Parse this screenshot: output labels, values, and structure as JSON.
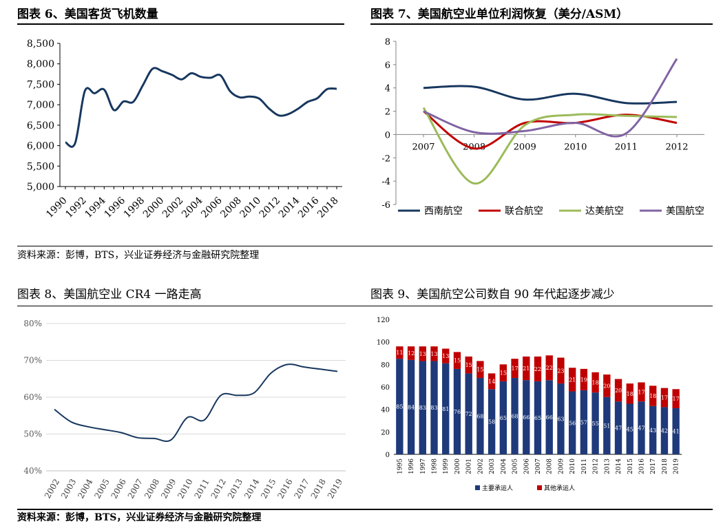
{
  "panels": {
    "p6_title": "图表 6、美国客货飞机数量",
    "p7_title": "图表 7、美国航空业单位利润恢复（美分/ASM）",
    "p8_title": "图表 8、美国航空业 CR4 一路走高",
    "p9_title": "图表 9、美国航空公司数自 90 年代起逐步减少",
    "source_top": "资料来源：彭博，BTS，兴业证券经济与金融研究院整理",
    "source_bottom": "资料来源：彭博，BTS，兴业证券经济与金融研究院整理"
  },
  "colors": {
    "navy": "#17375e",
    "red": "#c00000",
    "green": "#9bbb59",
    "purple": "#8064a2",
    "bar_navy": "#1f3a7a",
    "bar_red": "#c00000"
  },
  "chart_data": [
    {
      "id": "fig6",
      "type": "line",
      "x": [
        1990,
        1991,
        1992,
        1993,
        1994,
        1995,
        1996,
        1997,
        1998,
        1999,
        2000,
        2001,
        2002,
        2003,
        2004,
        2005,
        2006,
        2007,
        2008,
        2009,
        2010,
        2011,
        2012,
        2013,
        2014,
        2015,
        2016,
        2017,
        2018
      ],
      "xticks": [
        "1990",
        "1992",
        "1994",
        "1996",
        "1998",
        "2000",
        "2002",
        "2004",
        "2006",
        "2008",
        "2010",
        "2012",
        "2014",
        "2016",
        "2018"
      ],
      "series": [
        {
          "values": [
            6080,
            6060,
            7330,
            7280,
            7370,
            6870,
            7080,
            7070,
            7480,
            7880,
            7820,
            7730,
            7620,
            7770,
            7680,
            7660,
            7720,
            7330,
            7180,
            7200,
            7150,
            6910,
            6740,
            6770,
            6900,
            7070,
            7160,
            7380,
            7390
          ]
        }
      ],
      "ylim": [
        5000,
        8500
      ],
      "yticks": [
        "5,000",
        "5,500",
        "6,000",
        "6,500",
        "7,000",
        "7,500",
        "8,000",
        "8,500"
      ],
      "ytick_values": [
        5000,
        5500,
        6000,
        6500,
        7000,
        7500,
        8000,
        8500
      ]
    },
    {
      "id": "fig7",
      "type": "line",
      "x": [
        "2007",
        "2008",
        "2009",
        "2010",
        "2011",
        "2012"
      ],
      "ylim": [
        -6,
        8
      ],
      "yticks": [
        "-6",
        "-4",
        "-2",
        "0",
        "2",
        "4",
        "6",
        "8"
      ],
      "ytick_values": [
        -6,
        -4,
        -2,
        0,
        2,
        4,
        6,
        8
      ],
      "series": [
        {
          "name": "西南航空",
          "color": "#17375e",
          "values": [
            4.0,
            4.1,
            3.0,
            3.5,
            2.7,
            2.8
          ]
        },
        {
          "name": "联合航空",
          "color": "#c00000",
          "values": [
            2.0,
            -1.2,
            1.0,
            1.0,
            1.7,
            1.0
          ]
        },
        {
          "name": "达美航空",
          "color": "#9bbb59",
          "values": [
            2.3,
            -4.2,
            0.8,
            1.7,
            1.6,
            1.5
          ]
        },
        {
          "name": "美国航空",
          "color": "#8064a2",
          "values": [
            2.0,
            0.2,
            0.3,
            1.0,
            0.1,
            6.5
          ]
        }
      ],
      "legend": "bottom"
    },
    {
      "id": "fig8",
      "type": "line",
      "x": [
        2002,
        2003,
        2004,
        2005,
        2006,
        2007,
        2008,
        2009,
        2010,
        2011,
        2012,
        2013,
        2014,
        2015,
        2016,
        2017,
        2018,
        2019
      ],
      "xticks": [
        "2002",
        "2003",
        "2004",
        "2005",
        "2006",
        "2007",
        "2008",
        "2009",
        "2010",
        "2011",
        "2012",
        "2013",
        "2014",
        "2015",
        "2016",
        "2017",
        "2018",
        "2019"
      ],
      "series": [
        {
          "values": [
            56.7,
            53.3,
            52.0,
            51.2,
            50.4,
            49.0,
            48.8,
            48.4,
            54.5,
            53.8,
            60.5,
            60.5,
            61.2,
            66.5,
            68.9,
            68.2,
            67.6,
            67.0
          ]
        }
      ],
      "ylim": [
        40,
        80
      ],
      "yticks": [
        "40%",
        "50%",
        "60%",
        "70%",
        "80%"
      ],
      "ytick_values": [
        40,
        50,
        60,
        70,
        80
      ]
    },
    {
      "id": "fig9",
      "type": "bar",
      "stacked": true,
      "categories": [
        "1995",
        "1996",
        "1997",
        "1998",
        "1999",
        "2000",
        "2001",
        "2002",
        "2003",
        "2004",
        "2005",
        "2006",
        "2007",
        "2008",
        "2009",
        "2010",
        "2011",
        "2012",
        "2013",
        "2014",
        "2015",
        "2016",
        "2017",
        "2018",
        "2019"
      ],
      "series": [
        {
          "name": "主要承运人",
          "color": "#1f3a7a",
          "values": [
            85,
            84,
            83,
            83,
            81,
            76,
            72,
            68,
            58,
            65,
            68,
            66,
            65,
            66,
            63,
            56,
            57,
            55,
            51,
            47,
            45,
            47,
            43,
            42,
            41
          ]
        },
        {
          "name": "其他承运人",
          "color": "#c00000",
          "values": [
            11,
            12,
            13,
            13,
            13,
            15,
            15,
            15,
            14,
            15,
            17,
            21,
            22,
            22,
            23,
            21,
            19,
            18,
            20,
            20,
            18,
            17,
            18,
            17,
            17
          ]
        }
      ],
      "ylim": [
        0,
        120
      ],
      "yticks": [
        "0",
        "20",
        "40",
        "60",
        "80",
        "100",
        "120"
      ],
      "ytick_values": [
        0,
        20,
        40,
        60,
        80,
        100,
        120
      ],
      "legend": "bottom"
    }
  ]
}
